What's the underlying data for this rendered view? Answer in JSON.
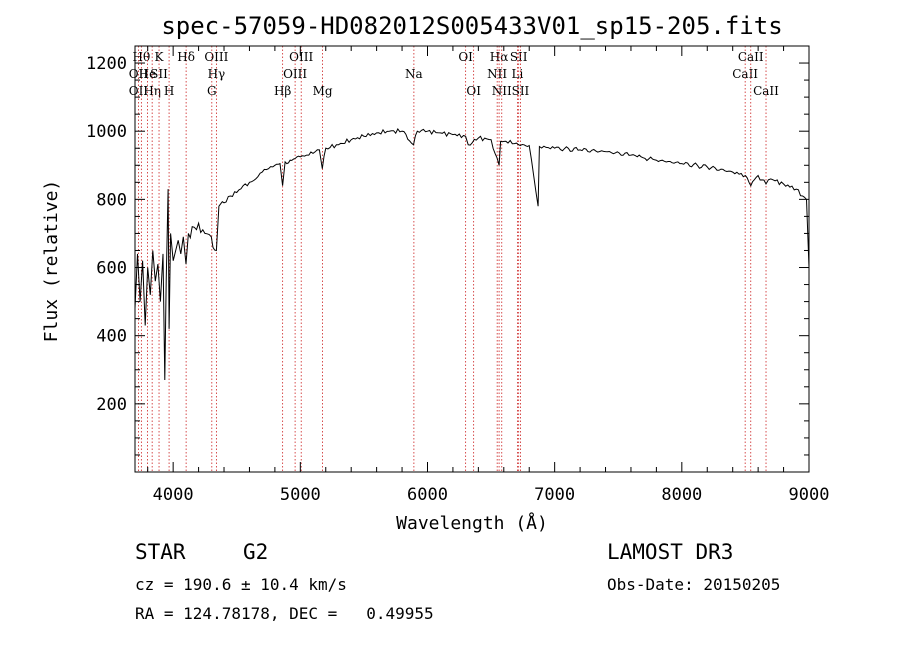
{
  "chart_data": {
    "type": "line",
    "title": "spec-57059-HD082012S005433V01_sp15-205.fits",
    "xlabel": "Wavelength (Å)",
    "ylabel": "Flux (relative)",
    "xlim": [
      3700,
      9000
    ],
    "ylim": [
      0,
      1250
    ],
    "x_ticks": [
      4000,
      5000,
      6000,
      7000,
      8000,
      9000
    ],
    "y_ticks": [
      200,
      400,
      600,
      800,
      1000,
      1200
    ],
    "series": [
      {
        "name": "spectrum",
        "points": [
          [
            3700,
            480
          ],
          [
            3720,
            640
          ],
          [
            3740,
            500
          ],
          [
            3760,
            620
          ],
          [
            3780,
            430
          ],
          [
            3800,
            600
          ],
          [
            3820,
            520
          ],
          [
            3840,
            650
          ],
          [
            3860,
            560
          ],
          [
            3880,
            610
          ],
          [
            3900,
            500
          ],
          [
            3920,
            640
          ],
          [
            3934,
            270
          ],
          [
            3945,
            560
          ],
          [
            3960,
            830
          ],
          [
            3968,
            420
          ],
          [
            3980,
            700
          ],
          [
            4000,
            620
          ],
          [
            4020,
            650
          ],
          [
            4040,
            680
          ],
          [
            4060,
            640
          ],
          [
            4080,
            690
          ],
          [
            4101,
            610
          ],
          [
            4120,
            700
          ],
          [
            4150,
            720
          ],
          [
            4200,
            730
          ],
          [
            4250,
            700
          ],
          [
            4300,
            690
          ],
          [
            4340,
            650
          ],
          [
            4360,
            780
          ],
          [
            4400,
            790
          ],
          [
            4450,
            810
          ],
          [
            4500,
            820
          ],
          [
            4550,
            840
          ],
          [
            4600,
            850
          ],
          [
            4650,
            860
          ],
          [
            4700,
            880
          ],
          [
            4750,
            890
          ],
          [
            4800,
            900
          ],
          [
            4840,
            905
          ],
          [
            4861,
            840
          ],
          [
            4880,
            910
          ],
          [
            4920,
            915
          ],
          [
            4960,
            920
          ],
          [
            5000,
            925
          ],
          [
            5050,
            930
          ],
          [
            5100,
            935
          ],
          [
            5150,
            945
          ],
          [
            5173,
            890
          ],
          [
            5200,
            950
          ],
          [
            5300,
            960
          ],
          [
            5400,
            975
          ],
          [
            5500,
            985
          ],
          [
            5600,
            995
          ],
          [
            5700,
            1000
          ],
          [
            5800,
            1000
          ],
          [
            5890,
            960
          ],
          [
            5920,
            1000
          ],
          [
            6000,
            1000
          ],
          [
            6100,
            995
          ],
          [
            6200,
            990
          ],
          [
            6300,
            985
          ],
          [
            6320,
            960
          ],
          [
            6400,
            980
          ],
          [
            6500,
            975
          ],
          [
            6563,
            900
          ],
          [
            6575,
            970
          ],
          [
            6600,
            970
          ],
          [
            6700,
            965
          ],
          [
            6760,
            960
          ],
          [
            6800,
            958
          ],
          [
            6870,
            780
          ],
          [
            6880,
            955
          ],
          [
            6950,
            952
          ],
          [
            7000,
            950
          ],
          [
            7200,
            945
          ],
          [
            7400,
            940
          ],
          [
            7600,
            930
          ],
          [
            7650,
            925
          ],
          [
            7800,
            915
          ],
          [
            8000,
            905
          ],
          [
            8200,
            895
          ],
          [
            8400,
            880
          ],
          [
            8500,
            870
          ],
          [
            8542,
            840
          ],
          [
            8600,
            870
          ],
          [
            8662,
            845
          ],
          [
            8700,
            860
          ],
          [
            8800,
            845
          ],
          [
            8900,
            830
          ],
          [
            8950,
            810
          ],
          [
            8980,
            800
          ],
          [
            9000,
            600
          ]
        ]
      }
    ],
    "line_markers": [
      {
        "wavelength": 3750,
        "label": "Hθ",
        "row": 1
      },
      {
        "wavelength": 3727,
        "label": "OII",
        "row": 2
      },
      {
        "wavelength": 3727,
        "label": "OII",
        "row": 3
      },
      {
        "wavelength": 3798,
        "label": "He",
        "row": 2
      },
      {
        "wavelength": 3835,
        "label": "Hη",
        "row": 3
      },
      {
        "wavelength": 3889,
        "label": "K",
        "row": 1
      },
      {
        "wavelength": 3889,
        "label": "SII",
        "row": 2
      },
      {
        "wavelength": 3968,
        "label": "H",
        "row": 3
      },
      {
        "wavelength": 4102,
        "label": "Hδ",
        "row": 1
      },
      {
        "wavelength": 4340,
        "label": "OIII",
        "row": 1
      },
      {
        "wavelength": 4340,
        "label": "Hγ",
        "row": 2
      },
      {
        "wavelength": 4304,
        "label": "G",
        "row": 3
      },
      {
        "wavelength": 4861,
        "label": "Hβ",
        "row": 3
      },
      {
        "wavelength": 5007,
        "label": "OIII",
        "row": 1
      },
      {
        "wavelength": 4959,
        "label": "OIII",
        "row": 2
      },
      {
        "wavelength": 5175,
        "label": "Mg",
        "row": 3
      },
      {
        "wavelength": 5893,
        "label": "Na",
        "row": 2
      },
      {
        "wavelength": 6300,
        "label": "OI",
        "row": 1
      },
      {
        "wavelength": 6363,
        "label": "OI",
        "row": 3
      },
      {
        "wavelength": 6563,
        "label": "Hα",
        "row": 1
      },
      {
        "wavelength": 6548,
        "label": "NII",
        "row": 2
      },
      {
        "wavelength": 6584,
        "label": "NII",
        "row": 3
      },
      {
        "wavelength": 6717,
        "label": "SII",
        "row": 1
      },
      {
        "wavelength": 6707,
        "label": "Li",
        "row": 2
      },
      {
        "wavelength": 6731,
        "label": "SII",
        "row": 3
      },
      {
        "wavelength": 8498,
        "label": "CaII",
        "row": 2
      },
      {
        "wavelength": 8542,
        "label": "CaII",
        "row": 1
      },
      {
        "wavelength": 8662,
        "label": "CaII",
        "row": 3
      }
    ]
  },
  "info": {
    "class": "STAR",
    "subclass": "G2",
    "survey": "LAMOST DR3",
    "cz": "cz = 190.6 ± 10.4 km/s",
    "obs_date": "Obs-Date: 20150205",
    "coords": "RA = 124.78178, DEC =   0.49955"
  }
}
